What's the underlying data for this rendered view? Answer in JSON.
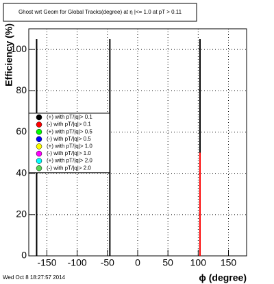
{
  "chart_data": {
    "type": "bar",
    "title": "Ghost wrt Geom for Global Tracks(degree) at η |<= 1.0 at pT > 0.11",
    "x_label": "ϕ (degree)",
    "y_label": "Efficiency (%)",
    "footer": "Wed Oct  8 18:27:57 2014",
    "x": [
      -167,
      -46,
      103
    ],
    "series": [
      {
        "name": "(+) with pT/|q|> 0.1",
        "color": "#000000",
        "values": [
          105,
          105,
          105
        ]
      },
      {
        "name": "(-) with pT/|q|> 0.1",
        "color": "#ff0000",
        "values": [
          null,
          null,
          50
        ]
      },
      {
        "name": "(+) with pT/|q|> 0.5",
        "color": "#00ff00",
        "values": [
          null,
          null,
          null
        ]
      },
      {
        "name": "(-) with pT/|q|> 0.5",
        "color": "#0000ff",
        "values": [
          null,
          null,
          null
        ]
      },
      {
        "name": "(+) with pT/|q|> 1.0",
        "color": "#ffff00",
        "values": [
          null,
          null,
          null
        ]
      },
      {
        "name": "(-) with pT/|q|> 1.0",
        "color": "#ff00ff",
        "values": [
          null,
          null,
          null
        ]
      },
      {
        "name": "(+) with pT/|q|> 2.0",
        "color": "#00ffff",
        "values": [
          null,
          null,
          null
        ]
      },
      {
        "name": "(-) with pT/|q|> 2.0",
        "color": "#59d454",
        "values": [
          null,
          null,
          null
        ]
      }
    ],
    "xlim": [
      -180,
      180
    ],
    "xticks": [
      -150,
      -100,
      -50,
      0,
      50,
      100,
      150
    ],
    "ylim": [
      0,
      110
    ],
    "yticks": [
      0,
      20,
      40,
      60,
      80,
      100
    ]
  }
}
